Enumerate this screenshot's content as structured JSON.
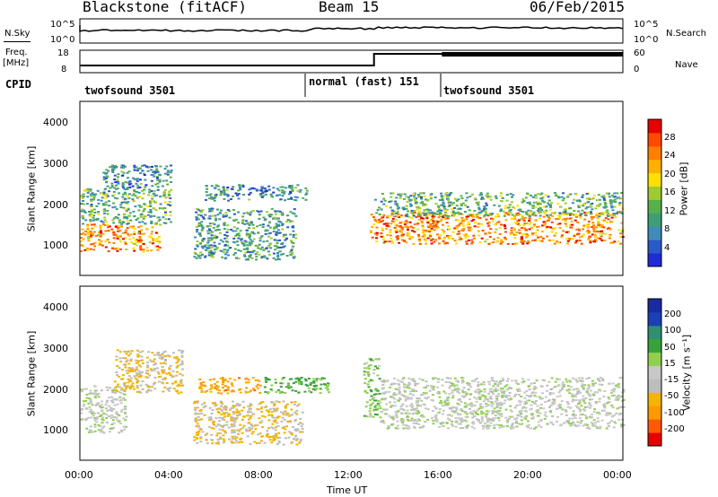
{
  "header": {
    "station": "Blackstone (fitACF)",
    "beam": "Beam 15",
    "date": "06/Feb/2015"
  },
  "left_labels": {
    "nsky": "N.Sky",
    "freq": "Freq.",
    "freq_unit": "[MHz]",
    "cpid": "CPID"
  },
  "right_labels": {
    "nsearch": "N.Search",
    "nave": "Nave"
  },
  "nsky_ticks": {
    "top": "10^5",
    "bottom": "10^0"
  },
  "freq_ticks": {
    "top": "18",
    "bottom": "8"
  },
  "nave_ticks": {
    "top": "60",
    "bottom": "0"
  },
  "cpid_segments": [
    "twofsound 3501",
    "normal (fast) 151",
    "twofsound 3501"
  ],
  "power_panel": {
    "ylabel": "Slant Range [km]",
    "yticks": [
      "4000",
      "3000",
      "2000",
      "1000"
    ],
    "cbar_label": "Power [dB]",
    "cbar_ticks": [
      "28",
      "24",
      "20",
      "16",
      "12",
      "8",
      "4"
    ]
  },
  "velocity_panel": {
    "ylabel": "Slant Range [km]",
    "yticks": [
      "4000",
      "3000",
      "2000",
      "1000"
    ],
    "cbar_label": "Velocity [m s⁻¹]",
    "cbar_ticks": [
      "200",
      "100",
      "50",
      "15",
      "-15",
      "-50",
      "-100",
      "-200"
    ]
  },
  "xaxis": {
    "label": "Time UT",
    "ticks": [
      "00:00",
      "04:00",
      "08:00",
      "12:00",
      "16:00",
      "20:00",
      "00:00"
    ]
  },
  "chart_data": [
    {
      "type": "heatmap",
      "title": "Power",
      "x_hours": [
        0,
        24
      ],
      "ylim_km": [
        180,
        4600
      ],
      "colorbar": {
        "label": "Power [dB]",
        "range": [
          0,
          32
        ],
        "colors": [
          "#1f2bd6",
          "#2a59c8",
          "#3f8cb8",
          "#3e9e7a",
          "#58b04c",
          "#9ecc2e",
          "#ffe000",
          "#ffb000",
          "#ff7f00",
          "#ff4a00",
          "#e60000"
        ]
      },
      "echo_bands": [
        {
          "t0": 0.0,
          "t1": 3.5,
          "r0": 800,
          "r1": 1500,
          "power": 24
        },
        {
          "t0": 0.0,
          "t1": 4.0,
          "r0": 1500,
          "r1": 2400,
          "power": 12
        },
        {
          "t0": 1.0,
          "t1": 4.0,
          "r0": 2400,
          "r1": 3000,
          "power": 8
        },
        {
          "t0": 5.0,
          "t1": 9.5,
          "r0": 600,
          "r1": 1900,
          "power": 10
        },
        {
          "t0": 5.5,
          "t1": 10.0,
          "r0": 2100,
          "r1": 2500,
          "power": 8
        },
        {
          "t0": 12.8,
          "t1": 24.0,
          "r0": 1000,
          "r1": 1800,
          "power": 24
        },
        {
          "t0": 13.0,
          "t1": 24.0,
          "r0": 1700,
          "r1": 2300,
          "power": 12
        }
      ]
    },
    {
      "type": "heatmap",
      "title": "Velocity",
      "x_hours": [
        0,
        24
      ],
      "ylim_km": [
        180,
        4600
      ],
      "colorbar": {
        "label": "Velocity [m s⁻¹]",
        "range": [
          -250,
          250
        ],
        "colors": [
          "#e60000",
          "#ff5a00",
          "#ff9900",
          "#f4b400",
          "#bdbdbd",
          "#c8c8c8",
          "#8fd14f",
          "#3aa23a",
          "#2f8f6f",
          "#1b3fb5",
          "#1a2aa0"
        ]
      },
      "echo_bands": [
        {
          "t0": 0.0,
          "t1": 2.0,
          "r0": 900,
          "r1": 2100,
          "velocity": 0
        },
        {
          "t0": 1.5,
          "t1": 4.5,
          "r0": 1900,
          "r1": 3000,
          "velocity": -70
        },
        {
          "t0": 5.0,
          "t1": 9.8,
          "r0": 600,
          "r1": 1700,
          "velocity": -70
        },
        {
          "t0": 5.2,
          "t1": 8.0,
          "r0": 1900,
          "r1": 2300,
          "velocity": -120
        },
        {
          "t0": 8.0,
          "t1": 11.0,
          "r0": 1900,
          "r1": 2300,
          "velocity": 70
        },
        {
          "t0": 12.5,
          "t1": 13.2,
          "r0": 1300,
          "r1": 2800,
          "velocity": 60
        },
        {
          "t0": 13.2,
          "t1": 24.0,
          "r0": 1000,
          "r1": 2300,
          "velocity": 0
        }
      ]
    }
  ]
}
